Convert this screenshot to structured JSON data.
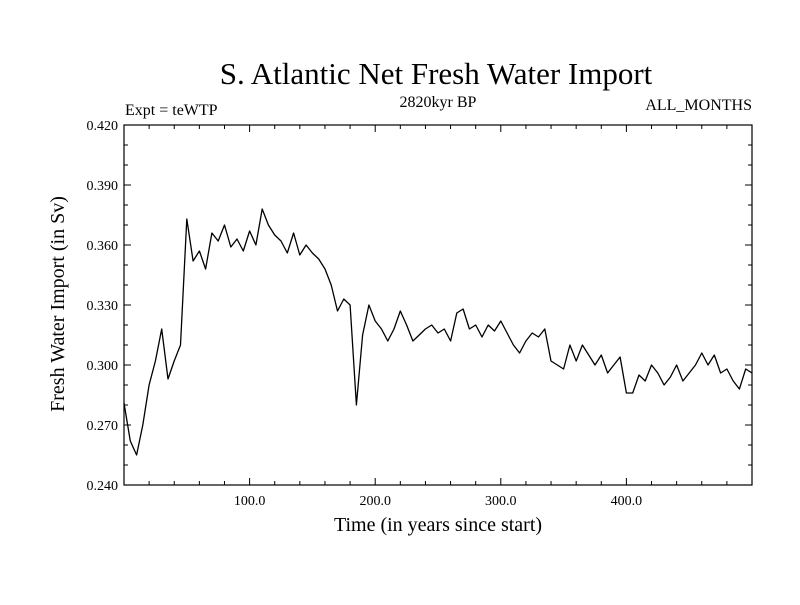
{
  "chart_data": {
    "type": "line",
    "title": "S. Atlantic Net Fresh Water Import",
    "subtitle_left": "Expt = teWTP",
    "subtitle_center": "2820kyr BP",
    "subtitle_right": "ALL_MONTHS",
    "xlabel": "Time (in years since start)",
    "ylabel": "Fresh Water Import (in Sv)",
    "xlim": [
      0,
      500
    ],
    "ylim": [
      0.24,
      0.42
    ],
    "xticks": [
      100,
      200,
      300,
      400
    ],
    "xtick_labels": [
      "100.0",
      "200.0",
      "300.0",
      "400.0"
    ],
    "yticks": [
      0.24,
      0.27,
      0.3,
      0.33,
      0.36,
      0.39,
      0.42
    ],
    "ytick_labels": [
      "0.240",
      "0.270",
      "0.300",
      "0.330",
      "0.360",
      "0.390",
      "0.420"
    ],
    "grid": false,
    "series": [
      {
        "name": "Net fresh water import",
        "x": [
          0,
          5,
          10,
          15,
          20,
          25,
          30,
          35,
          40,
          45,
          50,
          55,
          60,
          65,
          70,
          75,
          80,
          85,
          90,
          95,
          100,
          105,
          110,
          115,
          120,
          125,
          130,
          135,
          140,
          145,
          150,
          155,
          160,
          165,
          170,
          175,
          180,
          185,
          190,
          195,
          200,
          205,
          210,
          215,
          220,
          225,
          230,
          235,
          240,
          245,
          250,
          255,
          260,
          265,
          270,
          275,
          280,
          285,
          290,
          295,
          300,
          305,
          310,
          315,
          320,
          325,
          330,
          335,
          340,
          345,
          350,
          355,
          360,
          365,
          370,
          375,
          380,
          385,
          390,
          395,
          400,
          405,
          410,
          415,
          420,
          425,
          430,
          435,
          440,
          445,
          450,
          455,
          460,
          465,
          470,
          475,
          480,
          485,
          490,
          495,
          500
        ],
        "values": [
          0.281,
          0.262,
          0.255,
          0.27,
          0.29,
          0.302,
          0.318,
          0.293,
          0.302,
          0.31,
          0.373,
          0.352,
          0.357,
          0.348,
          0.366,
          0.362,
          0.37,
          0.359,
          0.363,
          0.357,
          0.367,
          0.36,
          0.378,
          0.37,
          0.365,
          0.362,
          0.356,
          0.366,
          0.355,
          0.36,
          0.356,
          0.353,
          0.348,
          0.34,
          0.327,
          0.333,
          0.33,
          0.28,
          0.315,
          0.33,
          0.322,
          0.318,
          0.312,
          0.318,
          0.327,
          0.32,
          0.312,
          0.315,
          0.318,
          0.32,
          0.316,
          0.318,
          0.312,
          0.326,
          0.328,
          0.318,
          0.32,
          0.314,
          0.32,
          0.317,
          0.322,
          0.316,
          0.31,
          0.306,
          0.312,
          0.316,
          0.314,
          0.318,
          0.302,
          0.3,
          0.298,
          0.31,
          0.302,
          0.31,
          0.305,
          0.3,
          0.305,
          0.296,
          0.3,
          0.304,
          0.286,
          0.286,
          0.295,
          0.292,
          0.3,
          0.296,
          0.29,
          0.294,
          0.3,
          0.292,
          0.296,
          0.3,
          0.306,
          0.3,
          0.305,
          0.296,
          0.298,
          0.292,
          0.288,
          0.298,
          0.296
        ]
      }
    ]
  }
}
